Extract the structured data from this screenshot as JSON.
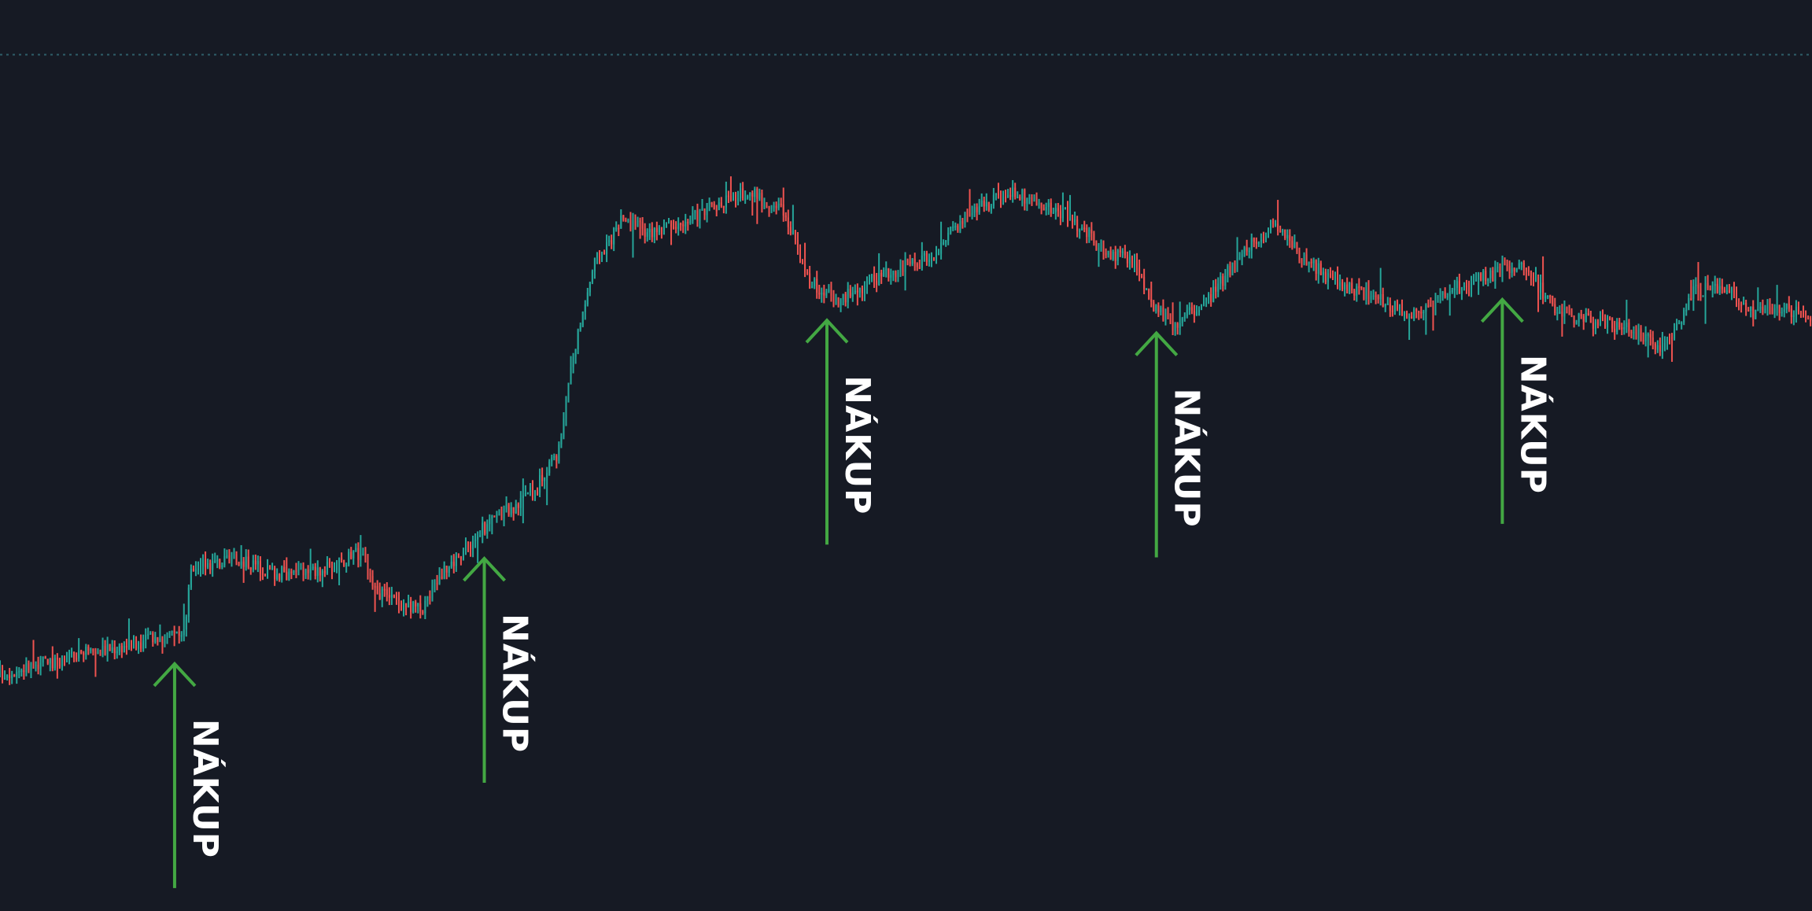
{
  "chart_data": {
    "type": "candlestick",
    "colors": {
      "background": "#161a24",
      "up": "#26a69a",
      "down": "#ef5350",
      "signal": "#43a843",
      "signal_text": "#ffffff",
      "reference_line": "#2f5f6a"
    },
    "ylim": [
      0,
      100
    ],
    "reference_line": 94,
    "grid": false,
    "legend": "none",
    "trend": [
      [
        0,
        26
      ],
      [
        60,
        28.5
      ],
      [
        113,
        30.5
      ],
      [
        118,
        38
      ],
      [
        150,
        38.5
      ],
      [
        170,
        37
      ],
      [
        200,
        37.5
      ],
      [
        222,
        39.5
      ],
      [
        228,
        35
      ],
      [
        257,
        33
      ],
      [
        270,
        37
      ],
      [
        295,
        42
      ],
      [
        325,
        46
      ],
      [
        340,
        50
      ],
      [
        348,
        60
      ],
      [
        362,
        71
      ],
      [
        380,
        76
      ],
      [
        395,
        74.5
      ],
      [
        412,
        75
      ],
      [
        430,
        77
      ],
      [
        455,
        79
      ],
      [
        477,
        77
      ],
      [
        493,
        69
      ],
      [
        510,
        67
      ],
      [
        540,
        70
      ],
      [
        570,
        72
      ],
      [
        585,
        76
      ],
      [
        615,
        79
      ],
      [
        634,
        77.5
      ],
      [
        650,
        76.5
      ],
      [
        668,
        73
      ],
      [
        690,
        71
      ],
      [
        700,
        67
      ],
      [
        713,
        64
      ],
      [
        734,
        67
      ],
      [
        759,
        73
      ],
      [
        775,
        75.5
      ],
      [
        790,
        72
      ],
      [
        812,
        69
      ],
      [
        829,
        68
      ],
      [
        851,
        66
      ],
      [
        866,
        65.5
      ],
      [
        880,
        68
      ],
      [
        900,
        69.5
      ],
      [
        925,
        71
      ],
      [
        944,
        66.5
      ],
      [
        960,
        65
      ],
      [
        990,
        64
      ],
      [
        1011,
        61.5
      ],
      [
        1030,
        68
      ],
      [
        1046,
        68.5
      ],
      [
        1067,
        65.5
      ],
      [
        1080,
        66.5
      ],
      [
        1096,
        65.5
      ]
    ],
    "signals": [
      {
        "x": 106,
        "label": "NÁKUP"
      },
      {
        "x": 294,
        "label": "NÁKUP"
      },
      {
        "x": 502,
        "label": "NÁKUP"
      },
      {
        "x": 702,
        "label": "NÁKUP"
      },
      {
        "x": 912,
        "label": "NÁKUP"
      }
    ]
  }
}
